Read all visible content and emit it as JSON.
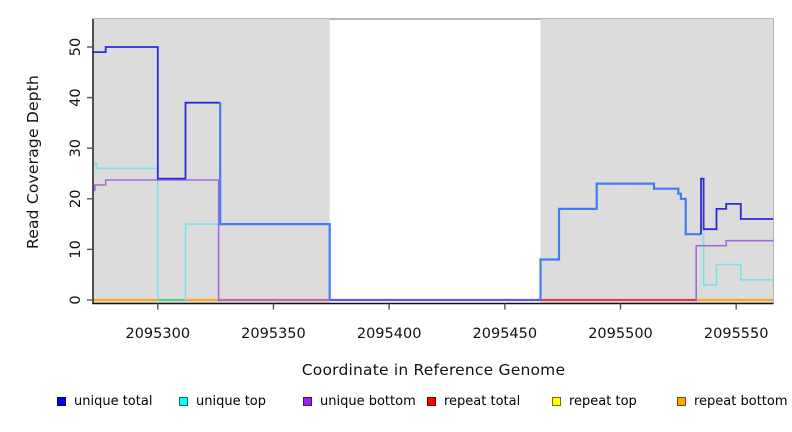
{
  "chart_data": {
    "type": "line",
    "subtype": "step-coverage-plot",
    "title": "",
    "xlabel": "Coordinate in Reference Genome",
    "ylabel": "Read Coverage Depth",
    "xlim": [
      2095272,
      2095566
    ],
    "ylim": [
      0,
      56
    ],
    "x_ticks": [
      2095300,
      2095350,
      2095400,
      2095450,
      2095500,
      2095550
    ],
    "y_ticks": [
      0,
      10,
      20,
      30,
      40,
      50
    ],
    "grid": false,
    "legend_position": "bottom",
    "background_color": "#ffffff",
    "shaded_region_color": "#dcdcdc",
    "shaded_regions": [
      [
        2095272,
        2095374.3
      ],
      [
        2095465.4,
        2095566
      ]
    ],
    "series": [
      {
        "name": "unique total",
        "legend_color": "#0000ee",
        "line_color": "#2b2bd8",
        "overlap_line_color": "#3f7ef0",
        "runs": [
          {
            "color": "#2b2bd8",
            "width": 1.8,
            "points": [
              [
                2095272,
                49
              ],
              [
                2095277.5,
                49
              ],
              [
                2095277.5,
                50
              ],
              [
                2095300,
                50
              ],
              [
                2095300,
                24
              ],
              [
                2095312,
                24
              ],
              [
                2095312,
                39
              ],
              [
                2095327,
                39
              ]
            ]
          },
          {
            "color": "#3f7ef0",
            "width": 2.2,
            "points": [
              [
                2095327,
                39
              ],
              [
                2095327,
                15
              ],
              [
                2095374.3,
                15
              ],
              [
                2095374.3,
                0
              ]
            ]
          },
          {
            "color": "#3f7ef0",
            "width": 2.2,
            "points": [
              [
                2095465.4,
                0
              ],
              [
                2095465.4,
                8
              ],
              [
                2095473.4,
                8
              ],
              [
                2095473.4,
                18
              ],
              [
                2095489.7,
                18
              ],
              [
                2095489.7,
                23
              ],
              [
                2095514.5,
                23
              ],
              [
                2095514.5,
                22
              ],
              [
                2095525,
                22
              ],
              [
                2095525,
                21
              ],
              [
                2095526.1,
                21
              ],
              [
                2095526.1,
                20
              ],
              [
                2095528.2,
                20
              ],
              [
                2095528.2,
                13
              ],
              [
                2095534.8,
                13
              ]
            ]
          },
          {
            "color": "#2b2bd8",
            "width": 1.8,
            "points": [
              [
                2095534.8,
                13
              ],
              [
                2095534.8,
                24
              ],
              [
                2095535.9,
                24
              ],
              [
                2095535.9,
                14
              ],
              [
                2095541.5,
                14
              ],
              [
                2095541.5,
                18
              ],
              [
                2095545.7,
                18
              ],
              [
                2095545.7,
                19
              ],
              [
                2095552,
                19
              ],
              [
                2095552,
                16
              ],
              [
                2095566,
                16
              ]
            ]
          }
        ]
      },
      {
        "name": "unique top",
        "legend_color": "#00ffff",
        "line_color": "#76e3ec",
        "runs": [
          {
            "color": "#76e3ec",
            "width": 1.6,
            "points": [
              [
                2095272,
                27
              ],
              [
                2095273.5,
                27
              ],
              [
                2095273.5,
                26
              ],
              [
                2095300,
                26
              ],
              [
                2095300,
                0
              ]
            ]
          },
          {
            "color": "#76e3ec",
            "width": 1.6,
            "points": [
              [
                2095312,
                0
              ],
              [
                2095312,
                15
              ],
              [
                2095374.3,
                15
              ],
              [
                2095374.3,
                0
              ]
            ]
          },
          {
            "color": "#76e3ec",
            "width": 1.6,
            "points": [
              [
                2095465.4,
                0
              ],
              [
                2095465.4,
                8
              ],
              [
                2095473.4,
                8
              ],
              [
                2095473.4,
                18
              ],
              [
                2095489.7,
                18
              ],
              [
                2095489.7,
                23
              ],
              [
                2095514.5,
                23
              ],
              [
                2095514.5,
                22
              ],
              [
                2095525,
                22
              ],
              [
                2095525,
                21
              ],
              [
                2095526.1,
                21
              ],
              [
                2095526.1,
                20
              ],
              [
                2095528.2,
                20
              ],
              [
                2095528.2,
                13
              ],
              [
                2095535.9,
                13
              ],
              [
                2095535.9,
                3
              ],
              [
                2095541.5,
                3
              ],
              [
                2095541.5,
                7
              ],
              [
                2095552,
                7
              ],
              [
                2095552,
                4
              ],
              [
                2095566,
                4
              ]
            ]
          }
        ]
      },
      {
        "name": "unique bottom",
        "legend_color": "#a020f0",
        "line_color": "#a767d8",
        "runs": [
          {
            "color": "#a767d8",
            "width": 1.6,
            "points": [
              [
                2095272,
                22
              ],
              [
                2095272.8,
                22
              ],
              [
                2095272.8,
                23
              ],
              [
                2095277.5,
                23
              ],
              [
                2095277.5,
                24
              ],
              [
                2095326.3,
                24
              ],
              [
                2095326.3,
                0
              ]
            ]
          },
          {
            "color": "#a767d8",
            "width": 1.6,
            "points": [
              [
                2095532.7,
                0
              ],
              [
                2095532.7,
                11
              ],
              [
                2095545.7,
                11
              ],
              [
                2095545.7,
                12
              ],
              [
                2095566,
                12
              ]
            ]
          }
        ]
      },
      {
        "name": "repeat total",
        "legend_color": "#ff0000",
        "line_color": "#db3e55",
        "constant_value": 0,
        "runs": []
      },
      {
        "name": "repeat top",
        "legend_color": "#ffff00",
        "line_color": "#e8d800",
        "constant_value": 0,
        "runs": []
      },
      {
        "name": "repeat bottom",
        "legend_color": "#ffa500",
        "line_color": "#ffa41f",
        "constant_value": 0,
        "runs": []
      }
    ],
    "zero_line_segments": [
      {
        "x1": 2095272,
        "x2": 2095300,
        "color": "#ffa41f"
      },
      {
        "x1": 2095300,
        "x2": 2095312,
        "color": "#5cc98e"
      },
      {
        "x1": 2095312,
        "x2": 2095326.3,
        "color": "#ffa41f"
      },
      {
        "x1": 2095326.3,
        "x2": 2095374.3,
        "color": "#c9679f"
      },
      {
        "x1": 2095374.3,
        "x2": 2095465.4,
        "color": "#5b55e0"
      },
      {
        "x1": 2095465.4,
        "x2": 2095532.7,
        "color": "#db3e55"
      },
      {
        "x1": 2095532.7,
        "x2": 2095566,
        "color": "#ffa41f"
      }
    ],
    "axis_color": "#111111",
    "box_border_color": "#8a8a8a"
  },
  "legend": {
    "items": [
      {
        "label": "unique total",
        "color": "#0000ee"
      },
      {
        "label": "unique top",
        "color": "#00ffff"
      },
      {
        "label": "unique bottom",
        "color": "#a020f0"
      },
      {
        "label": "repeat total",
        "color": "#ff0000"
      },
      {
        "label": "repeat top",
        "color": "#ffff00"
      },
      {
        "label": "repeat bottom",
        "color": "#ffa500"
      }
    ]
  },
  "labels": {
    "x_axis": "Coordinate in Reference Genome",
    "y_axis": "Read Coverage Depth"
  }
}
